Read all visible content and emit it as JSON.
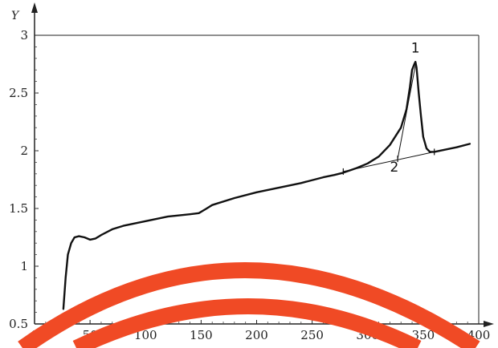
{
  "chart_data": {
    "type": "line",
    "ylabel": "Y",
    "xlabel": "",
    "xlim": [
      0,
      400
    ],
    "ylim": [
      0.5,
      3
    ],
    "x_ticks": [
      0,
      50,
      100,
      150,
      200,
      250,
      300,
      350,
      400
    ],
    "x_tick_labels": [
      "0",
      "50",
      "100",
      "150",
      "200",
      "250",
      "300",
      "350",
      "400"
    ],
    "y_ticks": [
      0.5,
      1,
      1.5,
      2,
      2.5,
      3
    ],
    "y_tick_labels": [
      "0.5",
      "1",
      "1.5",
      "2",
      "2.5",
      "3"
    ],
    "series": [
      {
        "style": "solid",
        "x": [
          26,
          28,
          30,
          33,
          36,
          40,
          45,
          50,
          55,
          60,
          70,
          80,
          100,
          120,
          140,
          148,
          155,
          160,
          180,
          200,
          220,
          240,
          260,
          270,
          278,
          290,
          300,
          310,
          320,
          330,
          335,
          338,
          340,
          342,
          343,
          344,
          346,
          348,
          350,
          353,
          356,
          360,
          370,
          380,
          392
        ],
        "y": [
          0.63,
          0.9,
          1.1,
          1.2,
          1.25,
          1.26,
          1.25,
          1.23,
          1.24,
          1.27,
          1.32,
          1.35,
          1.39,
          1.43,
          1.45,
          1.46,
          1.5,
          1.53,
          1.59,
          1.64,
          1.68,
          1.72,
          1.77,
          1.79,
          1.81,
          1.85,
          1.89,
          1.95,
          2.05,
          2.2,
          2.36,
          2.55,
          2.7,
          2.75,
          2.77,
          2.72,
          2.5,
          2.3,
          2.12,
          2.02,
          1.99,
          1.99,
          2.01,
          2.03,
          2.06
        ]
      },
      {
        "style": "thin",
        "x": [
          278,
          360
        ],
        "y": [
          1.82,
          1.99
        ]
      },
      {
        "style": "thin",
        "x": [
          327,
          343
        ],
        "y": [
          1.93,
          2.74
        ]
      }
    ],
    "markers": [
      {
        "x": 278,
        "y": 1.82
      },
      {
        "x": 327,
        "y": 1.93
      },
      {
        "x": 360,
        "y": 1.99
      }
    ],
    "annotations": [
      {
        "text": "1",
        "x": 343,
        "y": 2.85
      },
      {
        "text": "2",
        "x": 324,
        "y": 1.82
      }
    ],
    "grid": false
  },
  "overlay": {
    "color": "#f04a25"
  }
}
